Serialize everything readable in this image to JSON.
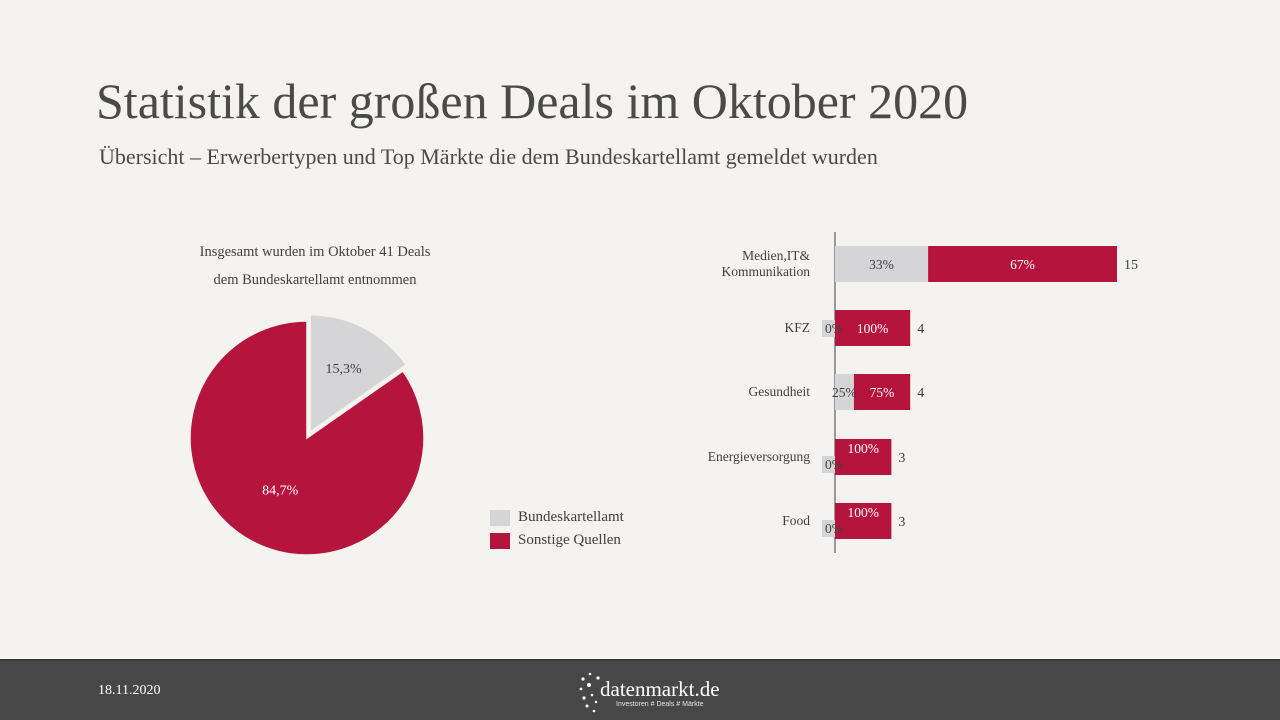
{
  "header": {
    "title": "Statistik der großen Deals im Oktober 2020",
    "subtitle": "Übersicht – Erwerbertypen und Top Märkte die dem Bundeskartellamt gemeldet wurden"
  },
  "pie_caption": {
    "line1": "Insgesamt wurden im Oktober 41 Deals",
    "line2": "dem Bundeskartellamt entnommen"
  },
  "legend": {
    "items": [
      {
        "label": "Bundeskartellamt",
        "color": "#d5d5d8"
      },
      {
        "label": "Sonstige Quellen",
        "color": "#b5143c"
      }
    ]
  },
  "chart_data": [
    {
      "type": "pie",
      "slices": [
        {
          "name": "Bundeskartellamt",
          "value": 15.3,
          "label": "15,3%",
          "color": "#d5d5d8",
          "exploded": true
        },
        {
          "name": "Sonstige Quellen",
          "value": 84.7,
          "label": "84,7%",
          "color": "#b5143c",
          "exploded": false
        }
      ],
      "legend": "bottom-right"
    },
    {
      "type": "bar",
      "orientation": "horizontal",
      "stacked": true,
      "categories": [
        "Medien,IT& Kommunikation",
        "KFZ",
        "Gesundheit",
        "Energieversorgung",
        "Food"
      ],
      "category_lines": [
        [
          "Medien,IT&",
          "Kommunikation"
        ],
        [
          "KFZ"
        ],
        [
          "Gesundheit"
        ],
        [
          "Energieversorgung"
        ],
        [
          "Food"
        ]
      ],
      "totals": [
        15,
        4,
        4,
        3,
        3
      ],
      "total_labels": [
        "15",
        "4",
        "4",
        "3",
        "3"
      ],
      "series": [
        {
          "name": "Bundeskartellamt",
          "color": "#d5d5d8",
          "share_percent": [
            33,
            0,
            25,
            0,
            0
          ],
          "labels": [
            "33%",
            "0%",
            "25%",
            "0%",
            "0%"
          ]
        },
        {
          "name": "Sonstige Quellen",
          "color": "#b5143c",
          "share_percent": [
            67,
            100,
            75,
            100,
            100
          ],
          "labels": [
            "67%",
            "100%",
            "75%",
            "100%",
            "100%"
          ]
        }
      ],
      "xlim": [
        0,
        15
      ]
    }
  ],
  "footer": {
    "date": "18.11.2020",
    "brand_name": "datenmarkt.de",
    "brand_tagline": "Investoren # Deals # Märkte"
  }
}
